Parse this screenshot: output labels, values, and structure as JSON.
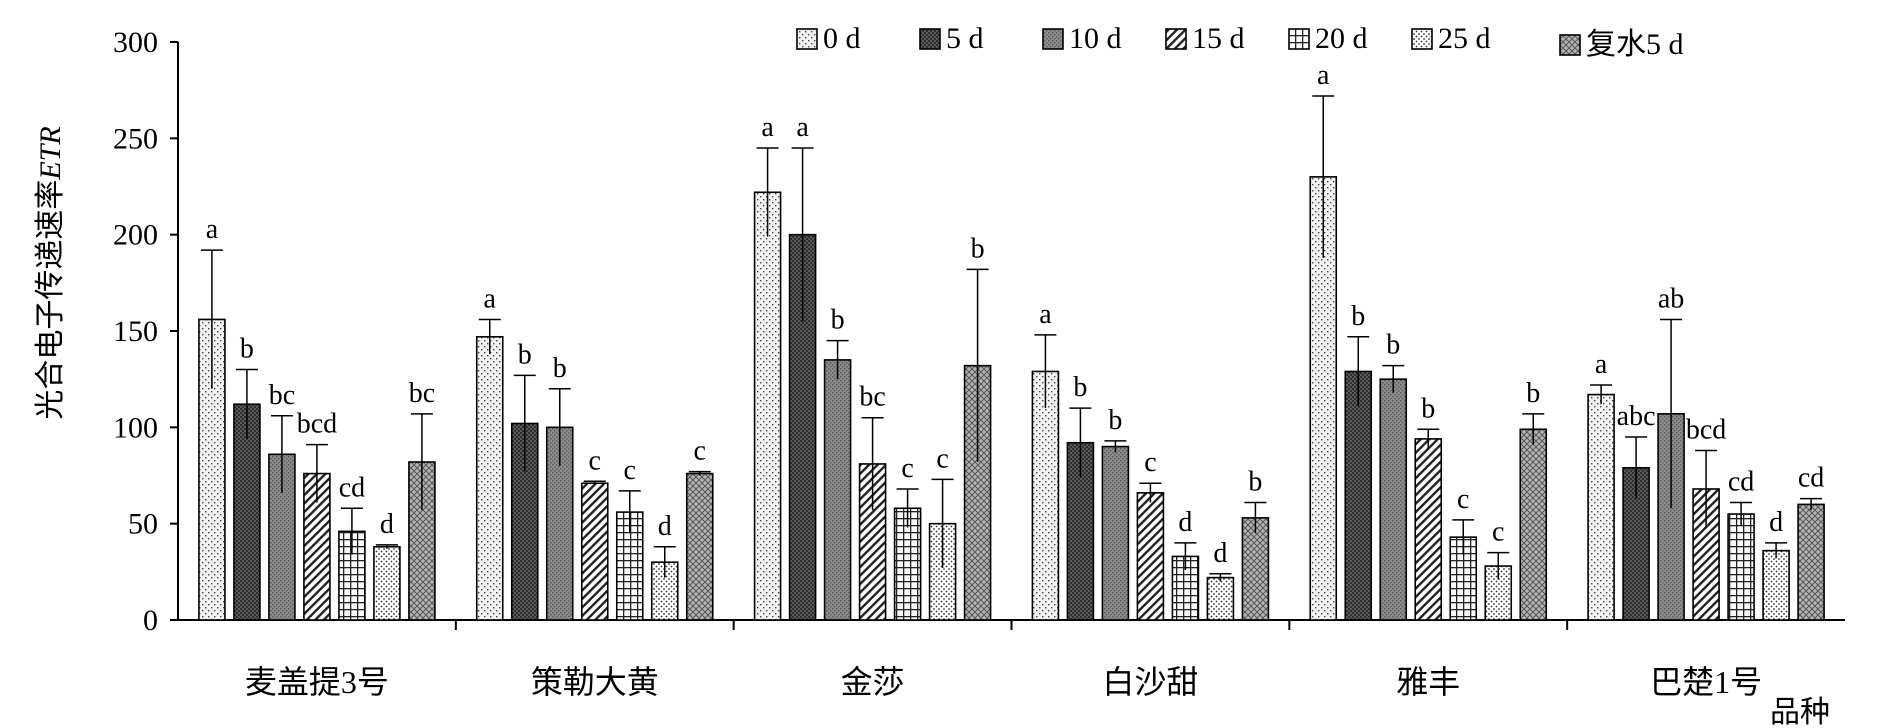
{
  "chart_data": {
    "type": "bar",
    "ylabel_prefix": "光合电子传递速率",
    "ylabel_italic": "ETR",
    "xlabel": "品种",
    "ylim": [
      0,
      300
    ],
    "yticks": [
      0,
      50,
      100,
      150,
      200,
      250,
      300
    ],
    "categories": [
      "麦盖提3号",
      "策勒大黄",
      "金莎",
      "白沙甜",
      "雅丰",
      "巴楚1号"
    ],
    "series": [
      {
        "name": "0 d",
        "pattern": "p0",
        "values": [
          156,
          147,
          222,
          129,
          230,
          117
        ],
        "errors": [
          36,
          9,
          23,
          19,
          42,
          5
        ]
      },
      {
        "name": "5 d",
        "pattern": "p1",
        "values": [
          112,
          102,
          200,
          92,
          129,
          79
        ],
        "errors": [
          18,
          25,
          45,
          18,
          18,
          16
        ]
      },
      {
        "name": "10 d",
        "pattern": "p2",
        "values": [
          86,
          100,
          135,
          90,
          125,
          107
        ],
        "errors": [
          20,
          20,
          10,
          3,
          7,
          49
        ]
      },
      {
        "name": "15 d",
        "pattern": "p3",
        "values": [
          76,
          71,
          81,
          66,
          94,
          68
        ],
        "errors": [
          15,
          1,
          24,
          5,
          5,
          20
        ]
      },
      {
        "name": "20 d",
        "pattern": "p4",
        "values": [
          46,
          56,
          58,
          33,
          43,
          55
        ],
        "errors": [
          12,
          11,
          10,
          7,
          9,
          6
        ]
      },
      {
        "name": "25 d",
        "pattern": "p5",
        "values": [
          38,
          30,
          50,
          22,
          28,
          36
        ],
        "errors": [
          1,
          8,
          23,
          2,
          7,
          4
        ]
      },
      {
        "name": "复水5 d",
        "pattern": "p6",
        "values": [
          82,
          76,
          132,
          53,
          99,
          60
        ],
        "errors": [
          25,
          1,
          50,
          8,
          8,
          3
        ]
      }
    ],
    "significance": [
      [
        "a",
        "b",
        "bc",
        "bcd",
        "cd",
        "d",
        "bc"
      ],
      [
        "a",
        "b",
        "b",
        "c",
        "c",
        "d",
        "c"
      ],
      [
        "a",
        "a",
        "b",
        "bc",
        "c",
        "c",
        "b"
      ],
      [
        "a",
        "b",
        "b",
        "c",
        "d",
        "d",
        "b"
      ],
      [
        "a",
        "b",
        "b",
        "b",
        "c",
        "c",
        "b"
      ],
      [
        "a",
        "abc",
        "ab",
        "bcd",
        "cd",
        "d",
        "cd"
      ]
    ]
  }
}
